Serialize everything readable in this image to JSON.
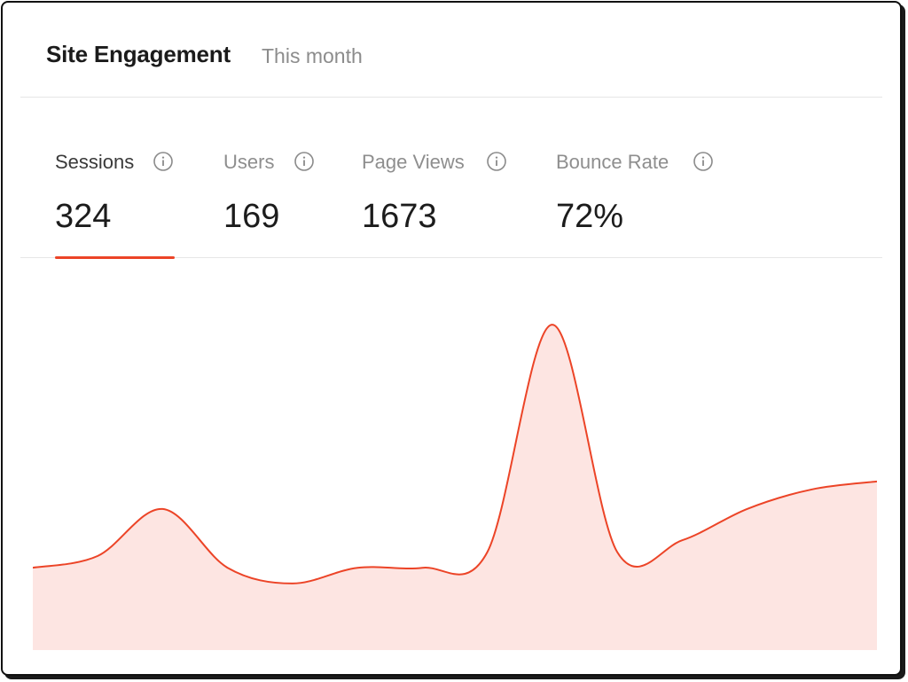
{
  "header": {
    "title": "Site Engagement",
    "period": "This month"
  },
  "tabs": [
    {
      "label": "Sessions",
      "value": "324",
      "active": true
    },
    {
      "label": "Users",
      "value": "169",
      "active": false
    },
    {
      "label": "Page Views",
      "value": "1673",
      "active": false
    },
    {
      "label": "Bounce Rate",
      "value": "72%",
      "active": false
    }
  ],
  "icons": {
    "info": "info-circle-icon"
  },
  "colors": {
    "accent": "#ec4427",
    "area_fill": "#fde5e2"
  },
  "chart_data": {
    "type": "area",
    "title": "",
    "xlabel": "",
    "ylabel": "",
    "ylim": [
      0,
      100
    ],
    "x": [
      0,
      1,
      2,
      3,
      4,
      5,
      6,
      7,
      8,
      9,
      10,
      11,
      12,
      13
    ],
    "series": [
      {
        "values": [
          21,
          24,
          36,
          21,
          17,
          21,
          21,
          25,
          83,
          25,
          28,
          36,
          41,
          43
        ]
      }
    ]
  }
}
